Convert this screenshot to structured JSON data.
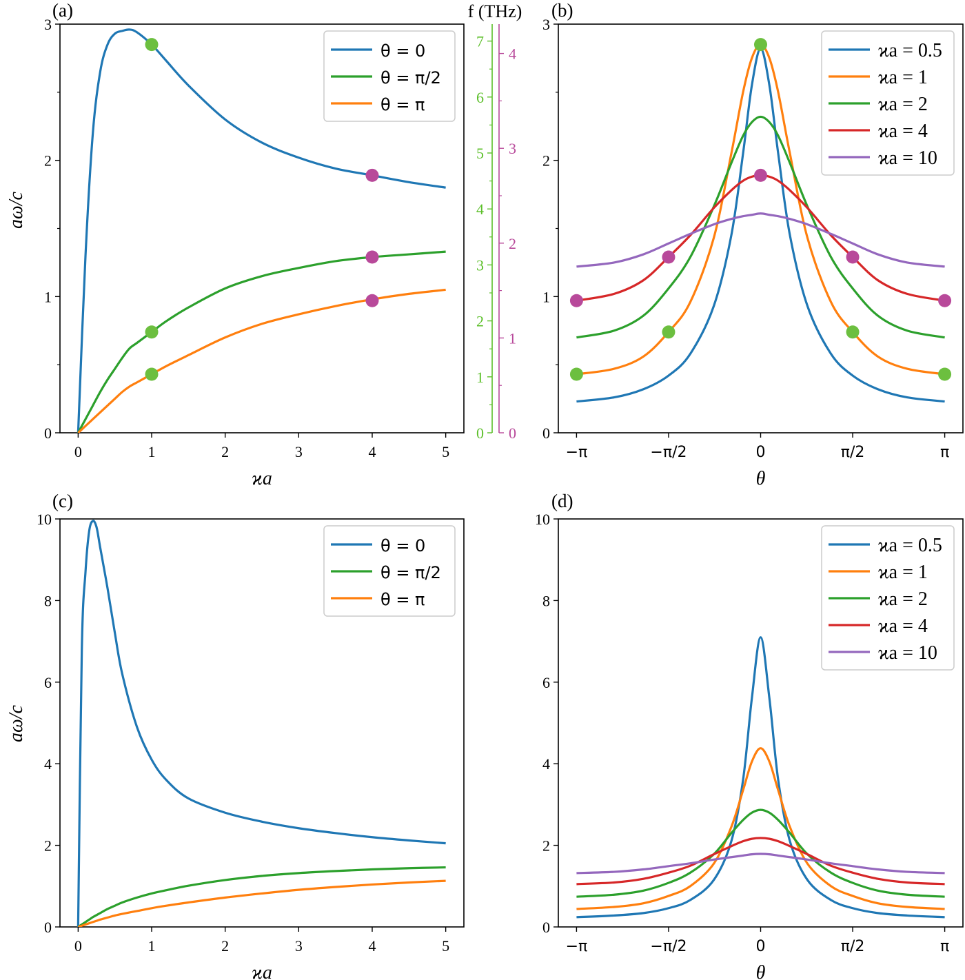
{
  "colors": {
    "blue": "#1f77b4",
    "orange": "#ff7f0e",
    "green": "#2ca02c",
    "red": "#d62728",
    "purple": "#9467bd",
    "marker_green": "#6cbf3f",
    "marker_magenta": "#b8499a",
    "axis_green": "#5cbf2a",
    "axis_magenta": "#b8499a"
  },
  "secondary_axes": {
    "label": "f (THz)",
    "green_ticks": [
      "0",
      "1",
      "2",
      "3",
      "4",
      "5",
      "6",
      "7"
    ],
    "magenta_ticks": [
      "0",
      "1",
      "2",
      "3",
      "4"
    ]
  },
  "chart_data": [
    {
      "panel": "(a)",
      "type": "line",
      "xlabel": "ϰa",
      "ylabel": "aω/c",
      "xlim": [
        0,
        5
      ],
      "ylim": [
        0,
        3
      ],
      "xticks": [
        "0",
        "1",
        "2",
        "3",
        "4",
        "5"
      ],
      "yticks": [
        "0",
        "1",
        "2",
        "3"
      ],
      "legend": "top-right",
      "x": [
        0,
        0.1,
        0.2,
        0.3,
        0.4,
        0.5,
        0.6,
        0.7,
        0.8,
        1.0,
        1.2,
        1.5,
        2.0,
        2.5,
        3.0,
        3.5,
        4.0,
        4.5,
        5.0
      ],
      "series": [
        {
          "name": "θ = 0",
          "color": "blue",
          "values": [
            0,
            1.3,
            2.2,
            2.65,
            2.85,
            2.93,
            2.95,
            2.96,
            2.94,
            2.85,
            2.73,
            2.55,
            2.3,
            2.13,
            2.02,
            1.94,
            1.89,
            1.84,
            1.8
          ]
        },
        {
          "name": "θ = π/2",
          "color": "green",
          "values": [
            0,
            0.1,
            0.2,
            0.3,
            0.39,
            0.47,
            0.55,
            0.62,
            0.66,
            0.74,
            0.82,
            0.92,
            1.06,
            1.15,
            1.21,
            1.26,
            1.29,
            1.31,
            1.33
          ]
        },
        {
          "name": "θ = π",
          "color": "orange",
          "values": [
            0,
            0.05,
            0.1,
            0.15,
            0.2,
            0.25,
            0.3,
            0.34,
            0.37,
            0.43,
            0.49,
            0.57,
            0.7,
            0.8,
            0.87,
            0.93,
            0.98,
            1.02,
            1.05
          ]
        }
      ],
      "markers": [
        {
          "x": 1,
          "y": 2.85,
          "color": "marker_green"
        },
        {
          "x": 1,
          "y": 0.74,
          "color": "marker_green"
        },
        {
          "x": 1,
          "y": 0.43,
          "color": "marker_green"
        },
        {
          "x": 4,
          "y": 1.89,
          "color": "marker_magenta"
        },
        {
          "x": 4,
          "y": 1.29,
          "color": "marker_magenta"
        },
        {
          "x": 4,
          "y": 0.97,
          "color": "marker_magenta"
        }
      ]
    },
    {
      "panel": "(b)",
      "type": "line",
      "xlabel": "θ",
      "ylabel": "",
      "xlim": [
        -3.14159,
        3.14159
      ],
      "ylim": [
        0,
        3
      ],
      "xticks": [
        "−π",
        "−π/2",
        "0",
        "π/2",
        "π"
      ],
      "yticks": [
        "0",
        "1",
        "2",
        "3"
      ],
      "legend": "top-right",
      "x": [
        -3.14159,
        -2.5,
        -2.0,
        -1.5708,
        -1.2,
        -0.8,
        -0.5,
        -0.3,
        -0.15,
        0,
        0.15,
        0.3,
        0.5,
        0.8,
        1.2,
        1.5708,
        2.0,
        2.5,
        3.14159
      ],
      "series": [
        {
          "name": "ϰa = 0.5",
          "color": "blue",
          "values": [
            0.23,
            0.26,
            0.32,
            0.42,
            0.58,
            0.93,
            1.45,
            2.05,
            2.55,
            2.82,
            2.55,
            2.05,
            1.45,
            0.93,
            0.58,
            0.42,
            0.32,
            0.26,
            0.23
          ]
        },
        {
          "name": "ϰa = 1",
          "color": "orange",
          "values": [
            0.43,
            0.47,
            0.56,
            0.74,
            0.96,
            1.43,
            2.05,
            2.5,
            2.75,
            2.85,
            2.75,
            2.5,
            2.05,
            1.43,
            0.96,
            0.74,
            0.56,
            0.47,
            0.43
          ]
        },
        {
          "name": "ϰa = 2",
          "color": "green",
          "values": [
            0.7,
            0.75,
            0.86,
            1.06,
            1.29,
            1.66,
            1.98,
            2.18,
            2.28,
            2.32,
            2.28,
            2.18,
            1.98,
            1.66,
            1.29,
            1.06,
            0.86,
            0.75,
            0.7
          ]
        },
        {
          "name": "ϰa = 4",
          "color": "red",
          "values": [
            0.97,
            1.02,
            1.12,
            1.29,
            1.45,
            1.65,
            1.78,
            1.85,
            1.88,
            1.89,
            1.88,
            1.85,
            1.78,
            1.65,
            1.45,
            1.29,
            1.12,
            1.02,
            0.97
          ]
        },
        {
          "name": "ϰa = 10",
          "color": "purple",
          "values": [
            1.22,
            1.25,
            1.31,
            1.39,
            1.46,
            1.53,
            1.57,
            1.59,
            1.6,
            1.61,
            1.6,
            1.59,
            1.57,
            1.53,
            1.46,
            1.39,
            1.31,
            1.25,
            1.22
          ]
        }
      ],
      "markers": [
        {
          "x": -3.14159,
          "y": 0.97,
          "color": "marker_magenta"
        },
        {
          "x": -1.5708,
          "y": 1.29,
          "color": "marker_magenta"
        },
        {
          "x": 0,
          "y": 1.89,
          "color": "marker_magenta"
        },
        {
          "x": 1.5708,
          "y": 1.29,
          "color": "marker_magenta"
        },
        {
          "x": 3.14159,
          "y": 0.97,
          "color": "marker_magenta"
        },
        {
          "x": -3.14159,
          "y": 0.43,
          "color": "marker_green"
        },
        {
          "x": -1.5708,
          "y": 0.74,
          "color": "marker_green"
        },
        {
          "x": 0,
          "y": 2.85,
          "color": "marker_green"
        },
        {
          "x": 1.5708,
          "y": 0.74,
          "color": "marker_green"
        },
        {
          "x": 3.14159,
          "y": 0.43,
          "color": "marker_green"
        }
      ]
    },
    {
      "panel": "(c)",
      "type": "line",
      "xlabel": "ϰa",
      "ylabel": "aω/c",
      "xlim": [
        0,
        5
      ],
      "ylim": [
        0,
        10
      ],
      "xticks": [
        "0",
        "1",
        "2",
        "3",
        "4",
        "5"
      ],
      "yticks": [
        "0",
        "2",
        "4",
        "6",
        "8",
        "10"
      ],
      "legend": "top-right",
      "x": [
        0,
        0.05,
        0.1,
        0.15,
        0.2,
        0.25,
        0.3,
        0.4,
        0.5,
        0.6,
        0.8,
        1.0,
        1.2,
        1.5,
        2.0,
        2.5,
        3.0,
        3.5,
        4.0,
        4.5,
        5.0
      ],
      "series": [
        {
          "name": "θ = 0",
          "color": "blue",
          "values": [
            0,
            6.8,
            8.7,
            9.7,
            9.95,
            9.8,
            9.3,
            8.3,
            7.2,
            6.2,
            4.9,
            4.1,
            3.6,
            3.15,
            2.8,
            2.58,
            2.42,
            2.3,
            2.2,
            2.12,
            2.05
          ]
        },
        {
          "name": "θ = π/2",
          "color": "green",
          "values": [
            0,
            0.06,
            0.12,
            0.18,
            0.24,
            0.29,
            0.34,
            0.44,
            0.52,
            0.6,
            0.72,
            0.82,
            0.9,
            1.01,
            1.15,
            1.25,
            1.32,
            1.37,
            1.41,
            1.44,
            1.46
          ]
        },
        {
          "name": "θ = π",
          "color": "orange",
          "values": [
            0,
            0.03,
            0.06,
            0.09,
            0.12,
            0.15,
            0.18,
            0.23,
            0.28,
            0.32,
            0.39,
            0.46,
            0.52,
            0.6,
            0.72,
            0.82,
            0.91,
            0.98,
            1.04,
            1.09,
            1.13
          ]
        }
      ]
    },
    {
      "panel": "(d)",
      "type": "line",
      "xlabel": "θ",
      "ylabel": "",
      "xlim": [
        -3.14159,
        3.14159
      ],
      "ylim": [
        0,
        10
      ],
      "xticks": [
        "−π",
        "−π/2",
        "0",
        "π/2",
        "π"
      ],
      "yticks": [
        "0",
        "2",
        "4",
        "6",
        "8",
        "10"
      ],
      "legend": "top-right",
      "x": [
        -3.14159,
        -2.5,
        -2.0,
        -1.5708,
        -1.2,
        -0.8,
        -0.5,
        -0.3,
        -0.15,
        0,
        0.15,
        0.3,
        0.5,
        0.8,
        1.2,
        1.5708,
        2.0,
        2.5,
        3.14159
      ],
      "series": [
        {
          "name": "ϰa = 0.5",
          "color": "blue",
          "values": [
            0.24,
            0.28,
            0.34,
            0.46,
            0.66,
            1.15,
            2.1,
            3.6,
            5.6,
            7.1,
            5.6,
            3.6,
            2.1,
            1.15,
            0.66,
            0.46,
            0.34,
            0.28,
            0.24
          ]
        },
        {
          "name": "ϰa = 1",
          "color": "orange",
          "values": [
            0.44,
            0.49,
            0.58,
            0.76,
            1.0,
            1.55,
            2.45,
            3.35,
            4.05,
            4.38,
            4.05,
            3.35,
            2.45,
            1.55,
            1.0,
            0.76,
            0.58,
            0.49,
            0.44
          ]
        },
        {
          "name": "ϰa = 2",
          "color": "green",
          "values": [
            0.74,
            0.79,
            0.89,
            1.08,
            1.33,
            1.78,
            2.3,
            2.62,
            2.8,
            2.87,
            2.8,
            2.62,
            2.3,
            1.78,
            1.33,
            1.08,
            0.89,
            0.79,
            0.74
          ]
        },
        {
          "name": "ϰa = 4",
          "color": "red",
          "values": [
            1.05,
            1.09,
            1.18,
            1.33,
            1.5,
            1.78,
            1.98,
            2.1,
            2.16,
            2.18,
            2.16,
            2.1,
            1.98,
            1.78,
            1.5,
            1.33,
            1.18,
            1.09,
            1.05
          ]
        },
        {
          "name": "ϰa = 10",
          "color": "purple",
          "values": [
            1.32,
            1.35,
            1.41,
            1.49,
            1.56,
            1.65,
            1.71,
            1.75,
            1.78,
            1.79,
            1.78,
            1.75,
            1.71,
            1.65,
            1.56,
            1.49,
            1.41,
            1.35,
            1.32
          ]
        }
      ]
    }
  ]
}
